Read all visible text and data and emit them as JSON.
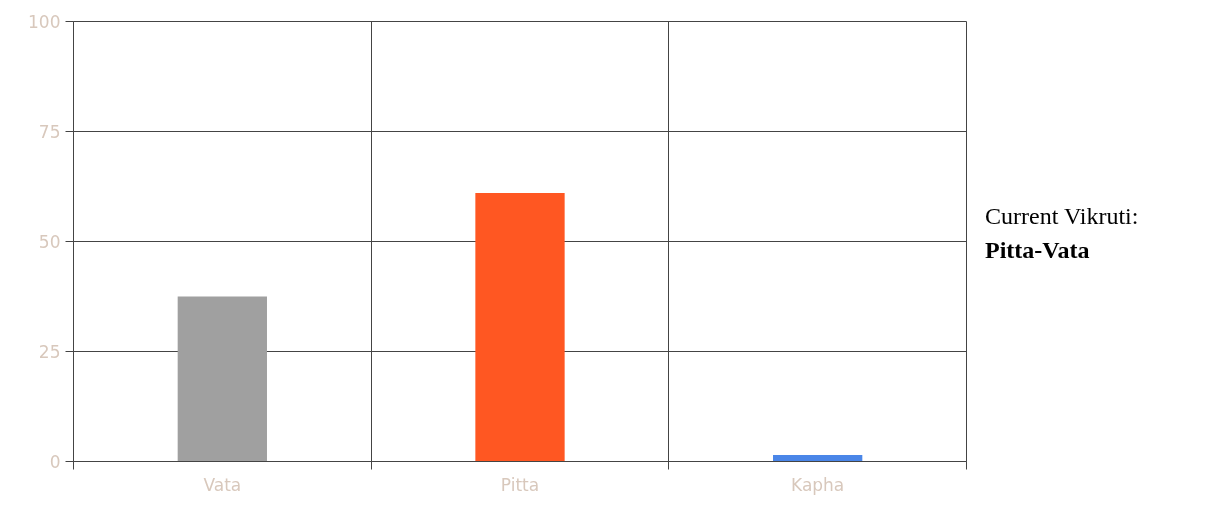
{
  "chart_data": {
    "type": "bar",
    "categories": [
      "Vata",
      "Pitta",
      "Kapha"
    ],
    "colors": [
      "#a0a0a0",
      "#ff5722",
      "#4a86e8"
    ],
    "values": [
      37.5,
      61,
      1.5
    ],
    "ylim": [
      0,
      100
    ],
    "yticks": [
      0,
      25,
      50,
      75,
      100
    ],
    "grid": true,
    "annotations": [
      "Current Vikruti:",
      "Pitta-Vata"
    ]
  }
}
